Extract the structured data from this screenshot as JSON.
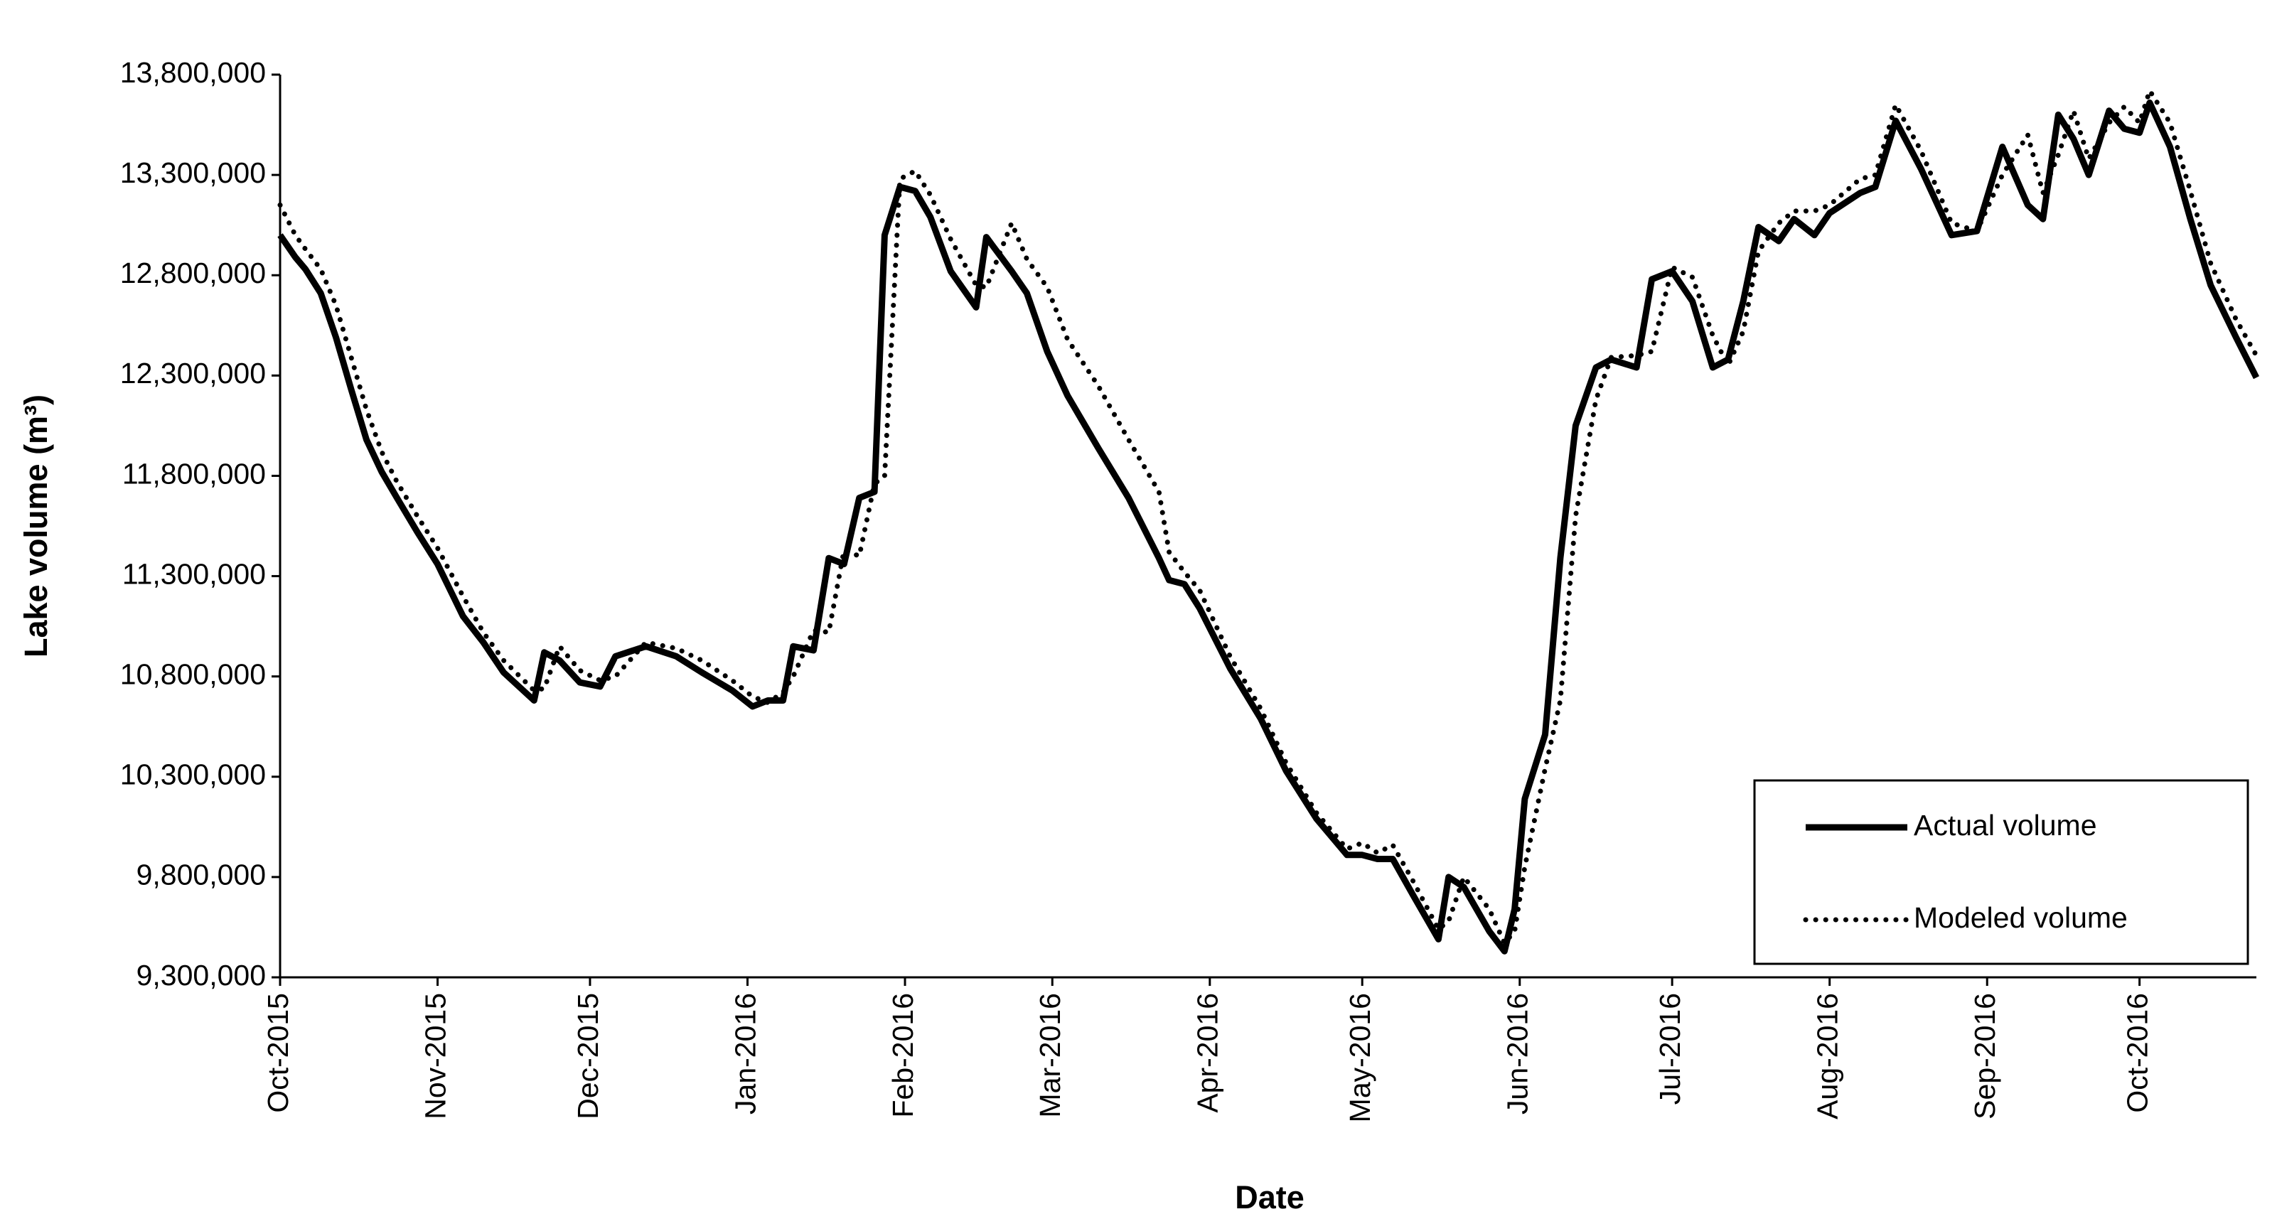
{
  "chart_data": {
    "type": "line",
    "x_label": "Date",
    "y_label": "Lake volume (m³)",
    "x": [
      0,
      3,
      5,
      8,
      11,
      14,
      17,
      20,
      23,
      27,
      31,
      36,
      40,
      44,
      50,
      52,
      55,
      59,
      63,
      66,
      72,
      78,
      83,
      89,
      93,
      96,
      99,
      101,
      105,
      108,
      111,
      114,
      117,
      119,
      122,
      125,
      128,
      132,
      137,
      139,
      144,
      147,
      151,
      155,
      161,
      167,
      173,
      175,
      178,
      181,
      187,
      193,
      198,
      204,
      210,
      213,
      216,
      219,
      223,
      228,
      230,
      233,
      238,
      241,
      243,
      245,
      249,
      252,
      255,
      259,
      262,
      267,
      270,
      274,
      278,
      282,
      285,
      288,
      291,
      295,
      298,
      302,
      305,
      311,
      314,
      318,
      323,
      329,
      334,
      339,
      344,
      347,
      350,
      353,
      356,
      360,
      363,
      366,
      368,
      372,
      376,
      380,
      385,
      389
    ],
    "series": [
      {
        "name": "Actual volume",
        "color": "#000000",
        "style": "solid",
        "values": [
          13000000,
          12890000,
          12830000,
          12710000,
          12490000,
          12230000,
          11980000,
          11820000,
          11690000,
          11520000,
          11360000,
          11100000,
          10970000,
          10820000,
          10680000,
          10920000,
          10880000,
          10770000,
          10750000,
          10900000,
          10950000,
          10900000,
          10820000,
          10730000,
          10650000,
          10680000,
          10680000,
          10950000,
          10930000,
          11390000,
          11360000,
          11690000,
          11720000,
          13000000,
          13240000,
          13220000,
          13090000,
          12820000,
          12640000,
          12990000,
          12820000,
          12710000,
          12420000,
          12200000,
          11940000,
          11690000,
          11390000,
          11280000,
          11260000,
          11140000,
          10840000,
          10590000,
          10330000,
          10090000,
          9910000,
          9910000,
          9890000,
          9890000,
          9710000,
          9490000,
          9800000,
          9750000,
          9530000,
          9430000,
          9640000,
          10190000,
          10510000,
          11390000,
          12050000,
          12340000,
          12380000,
          12340000,
          12780000,
          12820000,
          12670000,
          12340000,
          12380000,
          12670000,
          13040000,
          12970000,
          13080000,
          13000000,
          13110000,
          13210000,
          13240000,
          13570000,
          13330000,
          13000000,
          13020000,
          13440000,
          13150000,
          13080000,
          13600000,
          13480000,
          13300000,
          13620000,
          13530000,
          13510000,
          13660000,
          13440000,
          13080000,
          12750000,
          12490000,
          12290000
        ]
      },
      {
        "name": "Modeled volume",
        "color": "#000000",
        "style": "dotted",
        "values": [
          13150000,
          13000000,
          12930000,
          12830000,
          12650000,
          12390000,
          12130000,
          11920000,
          11770000,
          11600000,
          11440000,
          11200000,
          11020000,
          10880000,
          10730000,
          10740000,
          10950000,
          10830000,
          10780000,
          10800000,
          10970000,
          10940000,
          10880000,
          10780000,
          10700000,
          10670000,
          10720000,
          10800000,
          11030000,
          11020000,
          11430000,
          11400000,
          11760000,
          11800000,
          13280000,
          13320000,
          13200000,
          12980000,
          12750000,
          12740000,
          13060000,
          12880000,
          12740000,
          12480000,
          12250000,
          11980000,
          11720000,
          11420000,
          11320000,
          11230000,
          10900000,
          10640000,
          10370000,
          10120000,
          9940000,
          9970000,
          9920000,
          9960000,
          9780000,
          9540000,
          9580000,
          9800000,
          9640000,
          9470000,
          9530000,
          9850000,
          10340000,
          10680000,
          11600000,
          12180000,
          12390000,
          12400000,
          12420000,
          12840000,
          12790000,
          12500000,
          12350000,
          12520000,
          12920000,
          13060000,
          13120000,
          13120000,
          13150000,
          13280000,
          13300000,
          13650000,
          13420000,
          13060000,
          13020000,
          13300000,
          13500000,
          13210000,
          13400000,
          13620000,
          13380000,
          13560000,
          13640000,
          13560000,
          13720000,
          13560000,
          13220000,
          12860000,
          12580000,
          12400000
        ]
      }
    ],
    "xlim": [
      0,
      389
    ],
    "xticks": [
      {
        "value": 0,
        "label": "Oct-2015"
      },
      {
        "value": 31,
        "label": "Nov-2015"
      },
      {
        "value": 61,
        "label": "Dec-2015"
      },
      {
        "value": 92,
        "label": "Jan-2016"
      },
      {
        "value": 123,
        "label": "Feb-2016"
      },
      {
        "value": 152,
        "label": "Mar-2016"
      },
      {
        "value": 183,
        "label": "Apr-2016"
      },
      {
        "value": 213,
        "label": "May-2016"
      },
      {
        "value": 244,
        "label": "Jun-2016"
      },
      {
        "value": 274,
        "label": "Jul-2016"
      },
      {
        "value": 305,
        "label": "Aug-2016"
      },
      {
        "value": 336,
        "label": "Sep-2016"
      },
      {
        "value": 366,
        "label": "Oct-2016"
      }
    ],
    "ylim": [
      9300000,
      13800000
    ],
    "yticks": [
      {
        "value": 9300000,
        "label": "9,300,000"
      },
      {
        "value": 9800000,
        "label": "9,800,000"
      },
      {
        "value": 10300000,
        "label": "10,300,000"
      },
      {
        "value": 10800000,
        "label": "10,800,000"
      },
      {
        "value": 11300000,
        "label": "11,300,000"
      },
      {
        "value": 11800000,
        "label": "11,800,000"
      },
      {
        "value": 12300000,
        "label": "12,300,000"
      },
      {
        "value": 12800000,
        "label": "12,800,000"
      },
      {
        "value": 13300000,
        "label": "13,300,000"
      },
      {
        "value": 13800000,
        "label": "13,800,000"
      }
    ],
    "grid": false,
    "legend": "lower-right"
  }
}
